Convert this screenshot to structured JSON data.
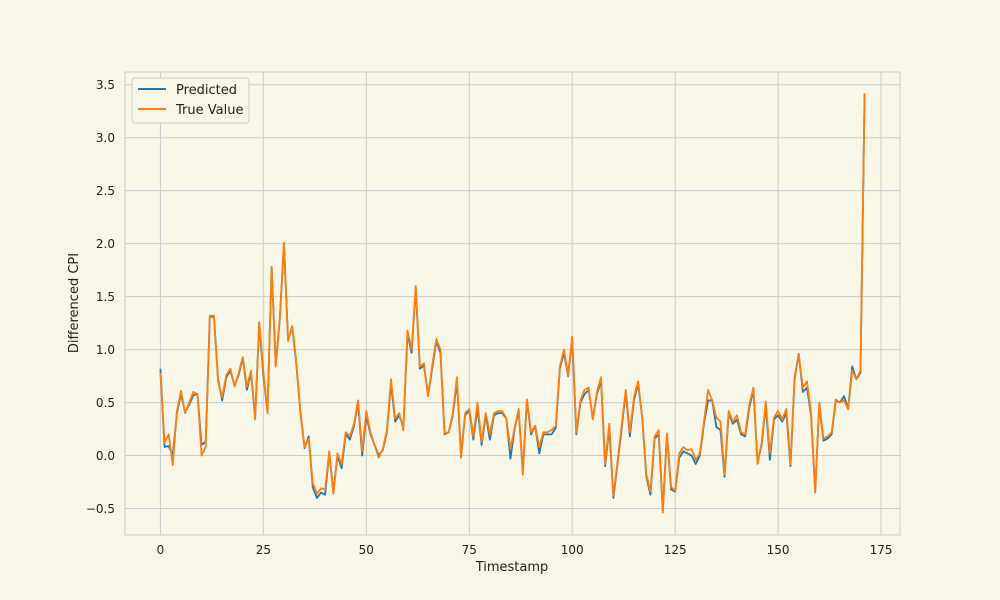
{
  "figure": {
    "background": "#f7f6e7"
  },
  "chart_data": {
    "type": "line",
    "title": "",
    "xlabel": "Timestamp",
    "ylabel": "Differenced CPI",
    "xlim": [
      -8.6,
      179.6
    ],
    "ylim": [
      -0.75,
      3.62
    ],
    "grid": true,
    "legend_position": "top-left",
    "plot_background": "#f7f6e7",
    "grid_color": "#cccccc",
    "xticks": [
      0,
      25,
      50,
      75,
      100,
      125,
      150,
      175
    ],
    "xtick_labels": [
      "0",
      "25",
      "50",
      "75",
      "100",
      "125",
      "150",
      "175"
    ],
    "yticks": [
      -0.5,
      0.0,
      0.5,
      1.0,
      1.5,
      2.0,
      2.5,
      3.0,
      3.5
    ],
    "ytick_labels": [
      "−0.5",
      "0.0",
      "0.5",
      "1.0",
      "1.5",
      "2.0",
      "2.5",
      "3.0",
      "3.5"
    ],
    "series": [
      {
        "name": "Predicted",
        "color": "#1f77b4",
        "x_start": 0,
        "values": [
          0.82,
          0.08,
          0.09,
          0.0,
          0.4,
          0.58,
          0.41,
          0.48,
          0.57,
          0.58,
          0.1,
          0.13,
          1.31,
          1.31,
          0.72,
          0.52,
          0.74,
          0.8,
          0.66,
          0.76,
          0.92,
          0.62,
          0.78,
          0.36,
          1.25,
          0.75,
          0.42,
          1.78,
          0.86,
          1.29,
          2.0,
          1.09,
          1.22,
          0.86,
          0.41,
          0.07,
          0.18,
          -0.3,
          -0.4,
          -0.35,
          -0.37,
          0.03,
          -0.35,
          0.0,
          -0.12,
          0.2,
          0.15,
          0.28,
          0.5,
          0.0,
          0.38,
          0.2,
          0.1,
          0.0,
          0.05,
          0.22,
          0.68,
          0.32,
          0.38,
          0.26,
          1.15,
          0.97,
          1.58,
          0.82,
          0.85,
          0.57,
          0.82,
          1.08,
          0.97,
          0.2,
          0.22,
          0.38,
          0.7,
          0.0,
          0.38,
          0.43,
          0.15,
          0.45,
          0.1,
          0.38,
          0.15,
          0.38,
          0.4,
          0.4,
          0.35,
          -0.03,
          0.25,
          0.42,
          -0.15,
          0.52,
          0.2,
          0.28,
          0.02,
          0.2,
          0.2,
          0.2,
          0.26,
          0.82,
          0.97,
          0.75,
          1.1,
          0.2,
          0.5,
          0.58,
          0.62,
          0.35,
          0.58,
          0.7,
          -0.1,
          0.26,
          -0.4,
          -0.08,
          0.25,
          0.6,
          0.18,
          0.52,
          0.68,
          0.36,
          -0.2,
          -0.37,
          0.16,
          0.2,
          -0.52,
          0.2,
          -0.32,
          -0.34,
          -0.02,
          0.04,
          0.02,
          0.0,
          -0.08,
          0.0,
          0.3,
          0.52,
          0.52,
          0.27,
          0.24,
          -0.2,
          0.4,
          0.3,
          0.34,
          0.2,
          0.18,
          0.45,
          0.62,
          -0.06,
          0.1,
          0.48,
          -0.04,
          0.34,
          0.38,
          0.32,
          0.4,
          -0.1,
          0.72,
          0.96,
          0.6,
          0.64,
          0.38,
          -0.34,
          0.48,
          0.14,
          0.16,
          0.2,
          0.52,
          0.5,
          0.56,
          0.44,
          0.84,
          0.72,
          0.78,
          3.4
        ]
      },
      {
        "name": "True Value",
        "color": "#ff7f0e",
        "x_start": 0,
        "values": [
          0.78,
          0.12,
          0.2,
          -0.09,
          0.42,
          0.61,
          0.4,
          0.5,
          0.6,
          0.58,
          0.0,
          0.08,
          1.32,
          1.32,
          0.7,
          0.55,
          0.76,
          0.82,
          0.65,
          0.78,
          0.93,
          0.65,
          0.8,
          0.34,
          1.26,
          0.8,
          0.4,
          1.78,
          0.84,
          1.3,
          2.01,
          1.08,
          1.22,
          0.88,
          0.4,
          0.08,
          0.16,
          -0.26,
          -0.36,
          -0.31,
          -0.32,
          0.04,
          -0.36,
          0.02,
          -0.08,
          0.22,
          0.18,
          0.3,
          0.52,
          0.04,
          0.42,
          0.22,
          0.1,
          -0.02,
          0.06,
          0.24,
          0.72,
          0.35,
          0.4,
          0.24,
          1.18,
          1.0,
          1.6,
          0.84,
          0.87,
          0.56,
          0.85,
          1.1,
          1.0,
          0.21,
          0.22,
          0.4,
          0.74,
          -0.02,
          0.4,
          0.44,
          0.18,
          0.5,
          0.13,
          0.4,
          0.2,
          0.4,
          0.42,
          0.42,
          0.35,
          0.06,
          0.26,
          0.44,
          -0.18,
          0.53,
          0.22,
          0.28,
          0.08,
          0.22,
          0.22,
          0.24,
          0.28,
          0.84,
          1.0,
          0.76,
          1.12,
          0.22,
          0.52,
          0.62,
          0.64,
          0.34,
          0.6,
          0.74,
          -0.08,
          0.3,
          -0.38,
          -0.06,
          0.28,
          0.62,
          0.22,
          0.55,
          0.7,
          0.35,
          -0.18,
          -0.34,
          0.18,
          0.24,
          -0.54,
          0.21,
          -0.3,
          -0.33,
          0.02,
          0.08,
          0.05,
          0.06,
          -0.04,
          0.02,
          0.32,
          0.62,
          0.52,
          0.36,
          0.32,
          -0.18,
          0.42,
          0.32,
          0.38,
          0.22,
          0.2,
          0.48,
          0.64,
          -0.08,
          0.12,
          0.51,
          0.02,
          0.36,
          0.42,
          0.34,
          0.44,
          -0.08,
          0.74,
          0.96,
          0.64,
          0.7,
          0.4,
          -0.35,
          0.5,
          0.16,
          0.18,
          0.22,
          0.53,
          0.5,
          0.52,
          0.44,
          0.8,
          0.72,
          0.8,
          3.42
        ]
      }
    ]
  }
}
